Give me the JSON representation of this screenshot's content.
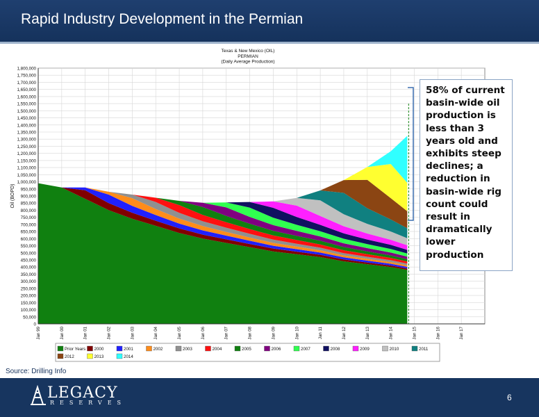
{
  "slide": {
    "title": "Rapid Industry Development in the Permian",
    "source": "Source: Drilling Info",
    "page_number": "6",
    "logo_main": "LEGACY",
    "logo_sub": "RESERVES"
  },
  "callout": {
    "text": "58% of current basin-wide oil production is less than 3 years old and exhibits steep declines; a reduction in basin-wide rig count could result in dramatically lower production"
  },
  "colors": {
    "header_bg": "#1f3f6f",
    "footer_bg": "#17355f",
    "callout_border": "#8aa4c4"
  },
  "chart_data": {
    "type": "area",
    "stacked": true,
    "title": "Texas & New Mexico (OIL)",
    "subtitle_lines": [
      "PERMIAN",
      "(Daily Average Production)"
    ],
    "ylabel": "Oil (BOPD)",
    "xlabel": "",
    "ylim": [
      0,
      1800000
    ],
    "yticks": [
      0,
      50000,
      100000,
      150000,
      200000,
      250000,
      300000,
      350000,
      400000,
      450000,
      500000,
      550000,
      600000,
      650000,
      700000,
      750000,
      800000,
      850000,
      900000,
      950000,
      1000000,
      1050000,
      1100000,
      1150000,
      1200000,
      1250000,
      1300000,
      1350000,
      1400000,
      1450000,
      1500000,
      1550000,
      1600000,
      1650000,
      1700000,
      1750000,
      1800000
    ],
    "ytick_labels": [
      "0",
      "50,000",
      "100,000",
      "150,000",
      "200,000",
      "250,000",
      "300,000",
      "350,000",
      "400,000",
      "450,000",
      "500,000",
      "550,000",
      "600,000",
      "650,000",
      "700,000",
      "750,000",
      "800,000",
      "850,000",
      "900,000",
      "950,000",
      "1,000,000",
      "1,050,000",
      "1,100,000",
      "1,150,000",
      "1,200,000",
      "1,250,000",
      "1,300,000",
      "1,350,000",
      "1,400,000",
      "1,450,000",
      "1,500,000",
      "1,550,000",
      "1,600,000",
      "1,650,000",
      "1,700,000",
      "1,750,000",
      "1,800,000"
    ],
    "x": [
      1999,
      2000,
      2001,
      2002,
      2003,
      2004,
      2005,
      2006,
      2007,
      2008,
      2009,
      2010,
      2011,
      2012,
      2013,
      2014,
      2014.7
    ],
    "xlim": [
      1999,
      2018
    ],
    "xticks": [
      1999,
      2000,
      2001,
      2002,
      2003,
      2004,
      2005,
      2006,
      2007,
      2008,
      2009,
      2010,
      2011,
      2012,
      2013,
      2014,
      2015,
      2016,
      2017
    ],
    "xtick_labels": [
      "Jan 99",
      "Jan 00",
      "Jan 01",
      "Jan 02",
      "Jan 03",
      "Jan 04",
      "Jan 05",
      "Jan 06",
      "Jan 07",
      "Jan 08",
      "Jan 09",
      "Jan 10",
      "Jan 11",
      "Jan 12",
      "Jan 13",
      "Jan 14",
      "Jan 15",
      "Jan 16",
      "Jan 17"
    ],
    "grid": true,
    "legend_position": "bottom",
    "series": [
      {
        "name": "Prior Years",
        "color": "#108010",
        "values": [
          990000,
          960000,
          880000,
          800000,
          740000,
          690000,
          640000,
          600000,
          570000,
          540000,
          510000,
          490000,
          470000,
          440000,
          420000,
          400000,
          380000
        ]
      },
      {
        "name": "2000",
        "color": "#800000",
        "values": [
          0,
          0,
          60000,
          50000,
          42000,
          36000,
          32000,
          28000,
          25000,
          22000,
          20000,
          18000,
          16000,
          14000,
          12000,
          11000,
          10000
        ]
      },
      {
        "name": "2001",
        "color": "#2020ff",
        "values": [
          0,
          0,
          20000,
          60000,
          48000,
          40000,
          34000,
          30000,
          26000,
          23000,
          20000,
          18000,
          16000,
          14000,
          13000,
          12000,
          11000
        ]
      },
      {
        "name": "2002",
        "color": "#ff8c1a",
        "values": [
          0,
          0,
          0,
          20000,
          55000,
          42000,
          35000,
          30000,
          26000,
          23000,
          20000,
          18000,
          16000,
          14000,
          13000,
          12000,
          11000
        ]
      },
      {
        "name": "2003",
        "color": "#909090",
        "values": [
          0,
          0,
          0,
          0,
          25000,
          50000,
          40000,
          34000,
          30000,
          26000,
          23000,
          20000,
          18000,
          16000,
          14000,
          13000,
          12000
        ]
      },
      {
        "name": "2004",
        "color": "#ff1010",
        "values": [
          0,
          0,
          0,
          0,
          0,
          30000,
          55000,
          45000,
          38000,
          33000,
          29000,
          26000,
          23000,
          20000,
          18000,
          16000,
          15000
        ]
      },
      {
        "name": "2005",
        "color": "#108010",
        "values": [
          0,
          0,
          0,
          0,
          0,
          0,
          30000,
          55000,
          45000,
          38000,
          33000,
          29000,
          26000,
          23000,
          20000,
          18000,
          16000
        ]
      },
      {
        "name": "2006",
        "color": "#800080",
        "values": [
          0,
          0,
          0,
          0,
          0,
          0,
          0,
          30000,
          60000,
          48000,
          40000,
          35000,
          30000,
          26000,
          23000,
          20000,
          18000
        ]
      },
      {
        "name": "2007",
        "color": "#30ff50",
        "values": [
          0,
          0,
          0,
          0,
          0,
          0,
          0,
          0,
          35000,
          65000,
          52000,
          43000,
          37000,
          32000,
          28000,
          25000,
          22000
        ]
      },
      {
        "name": "2008",
        "color": "#101060",
        "values": [
          0,
          0,
          0,
          0,
          0,
          0,
          0,
          0,
          0,
          40000,
          70000,
          55000,
          45000,
          38000,
          33000,
          29000,
          26000
        ]
      },
      {
        "name": "2009",
        "color": "#ff20ff",
        "values": [
          0,
          0,
          0,
          0,
          0,
          0,
          0,
          0,
          0,
          0,
          45000,
          80000,
          62000,
          50000,
          42000,
          36000,
          32000
        ]
      },
      {
        "name": "2010",
        "color": "#c0c0c0",
        "values": [
          0,
          0,
          0,
          0,
          0,
          0,
          0,
          0,
          0,
          0,
          0,
          55000,
          110000,
          85000,
          68000,
          58000,
          50000
        ]
      },
      {
        "name": "2011",
        "color": "#108080",
        "values": [
          0,
          0,
          0,
          0,
          0,
          0,
          0,
          0,
          0,
          0,
          0,
          0,
          70000,
          150000,
          110000,
          85000,
          70000
        ]
      },
      {
        "name": "2012",
        "color": "#8b4513",
        "values": [
          0,
          0,
          0,
          0,
          0,
          0,
          0,
          0,
          0,
          0,
          0,
          0,
          0,
          90000,
          200000,
          150000,
          120000
        ]
      },
      {
        "name": "2013",
        "color": "#ffff30",
        "values": [
          0,
          0,
          0,
          0,
          0,
          0,
          0,
          0,
          0,
          0,
          0,
          0,
          0,
          0,
          90000,
          240000,
          200000
        ]
      },
      {
        "name": "2014",
        "color": "#30ffff",
        "values": [
          0,
          0,
          0,
          0,
          0,
          0,
          0,
          0,
          0,
          0,
          0,
          0,
          0,
          0,
          0,
          90000,
          330000
        ]
      }
    ]
  }
}
